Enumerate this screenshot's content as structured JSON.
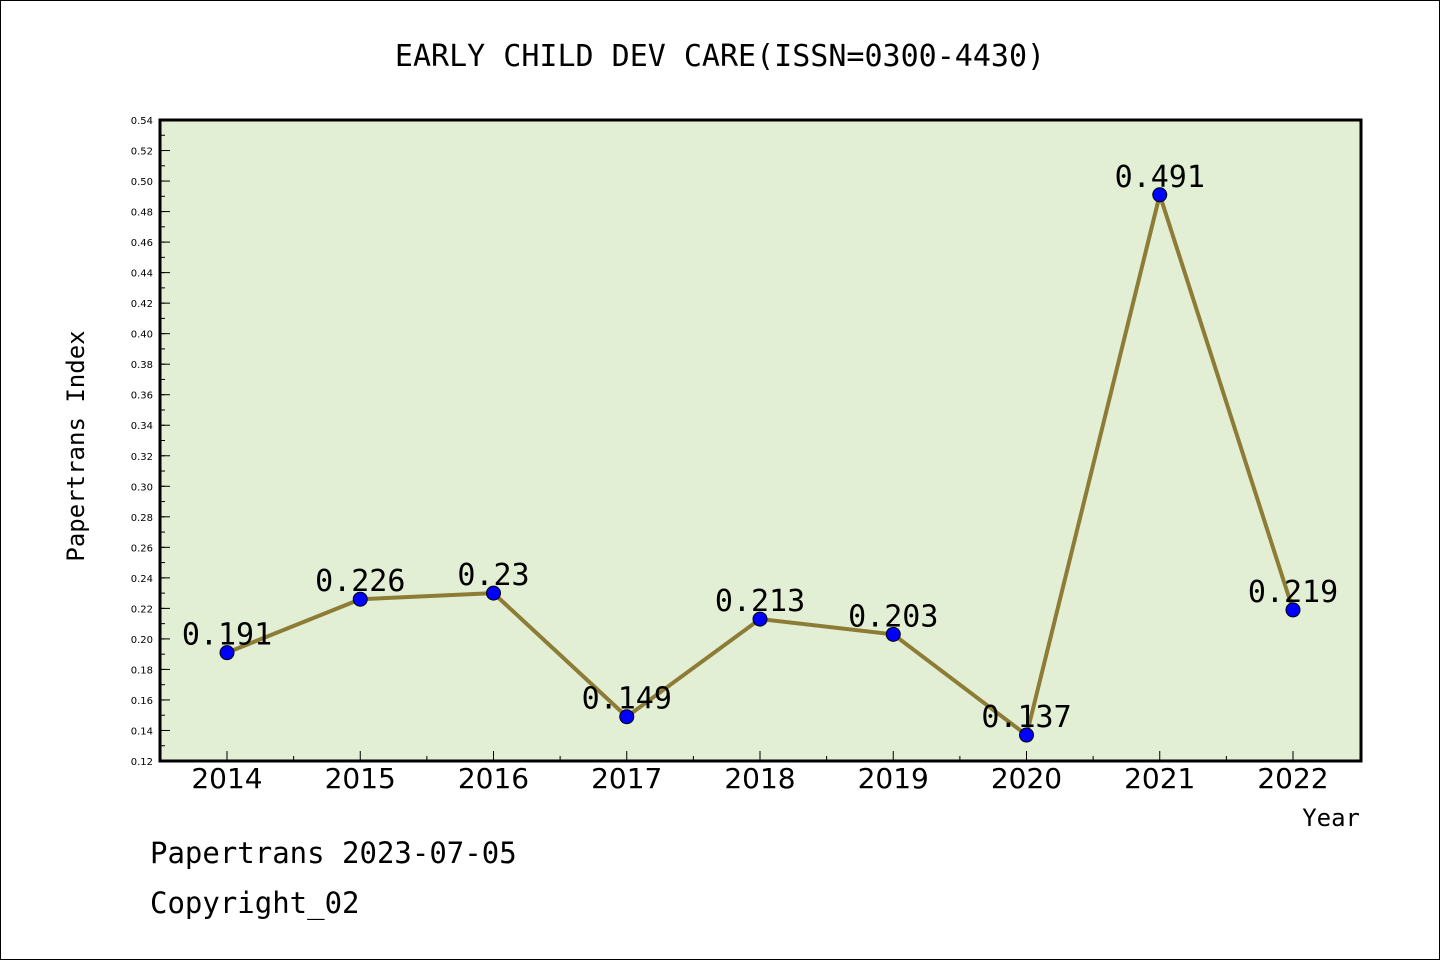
{
  "chart_data": {
    "type": "line",
    "title": "EARLY CHILD DEV CARE(ISSN=0300-4430)",
    "xlabel": "Year",
    "ylabel": "Papertrans Index",
    "categories": [
      "2014",
      "2015",
      "2016",
      "2017",
      "2018",
      "2019",
      "2020",
      "2021",
      "2022"
    ],
    "values": [
      0.191,
      0.226,
      0.23,
      0.149,
      0.213,
      0.203,
      0.137,
      0.491,
      0.219
    ],
    "data_labels": [
      "0.191",
      "0.226",
      "0.23",
      "0.149",
      "0.213",
      "0.203",
      "0.137",
      "0.491",
      "0.219"
    ],
    "ylim": [
      0.12,
      0.54
    ],
    "ytick_step": 0.02,
    "ytick_minor_step": 0.01,
    "grid": false,
    "colors": {
      "plot_background": "#e2efd5",
      "line": "#8c7c35",
      "marker": "#0000ff"
    }
  },
  "footer": {
    "date_line": "Papertrans 2023-07-05",
    "copyright_line": "Copyright_02"
  }
}
